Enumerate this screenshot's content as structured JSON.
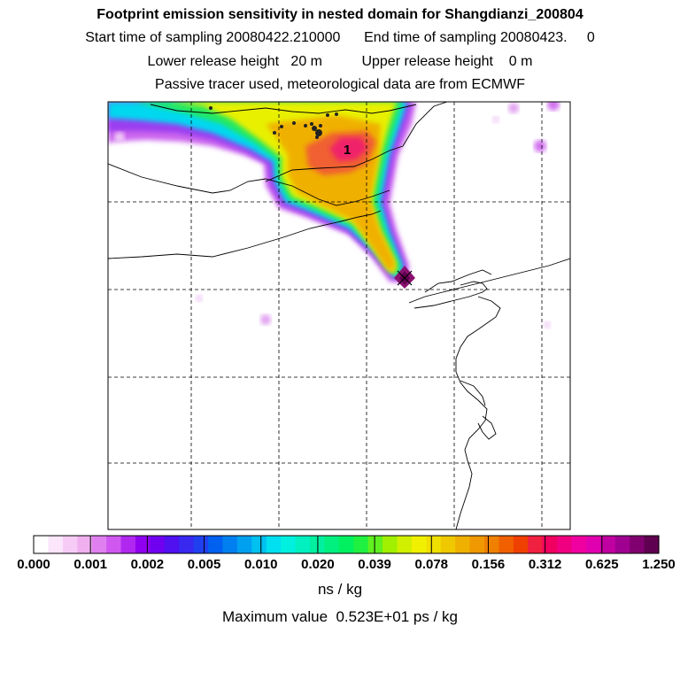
{
  "titles": {
    "line1": "Footprint emission sensitivity in nested domain for Shangdianzi_200804",
    "line2": "Start time of sampling 20080422.210000      End time of sampling 20080423.     0",
    "line3": "Lower release height   20 m          Upper release height    0 m",
    "line4": "Passive tracer used, meteorological data are from ECMWF"
  },
  "map": {
    "contour_label": "1",
    "release_marker": "receptor-site"
  },
  "colorbar": {
    "tick_labels": [
      "0.000",
      "0.001",
      "0.002",
      "0.005",
      "0.010",
      "0.020",
      "0.039",
      "0.078",
      "0.156",
      "0.312",
      "0.625",
      "1.250"
    ],
    "colors": [
      "#ffffff",
      "#fbe6fb",
      "#f6ccf6",
      "#f0b0f0",
      "#e080f0",
      "#d058f0",
      "#b028f0",
      "#9000f0",
      "#7000f0",
      "#5010f0",
      "#3828f0",
      "#2040f0",
      "#0060f0",
      "#0080f0",
      "#00a0f0",
      "#00c0f0",
      "#00e0f0",
      "#00f0e0",
      "#00f0c0",
      "#00f0a0",
      "#00f080",
      "#00f060",
      "#20f040",
      "#60f020",
      "#a0f000",
      "#d0f000",
      "#f0f000",
      "#f0e000",
      "#f0c800",
      "#f0b000",
      "#f09800",
      "#f08000",
      "#f06000",
      "#f04000",
      "#f02040",
      "#f00060",
      "#f00080",
      "#f000a0",
      "#e000b0",
      "#c000a0",
      "#a00090",
      "#800070",
      "#600050"
    ],
    "units": "ns / kg"
  },
  "footer": {
    "maximum": "Maximum value  0.523E+01 ps / kg"
  }
}
